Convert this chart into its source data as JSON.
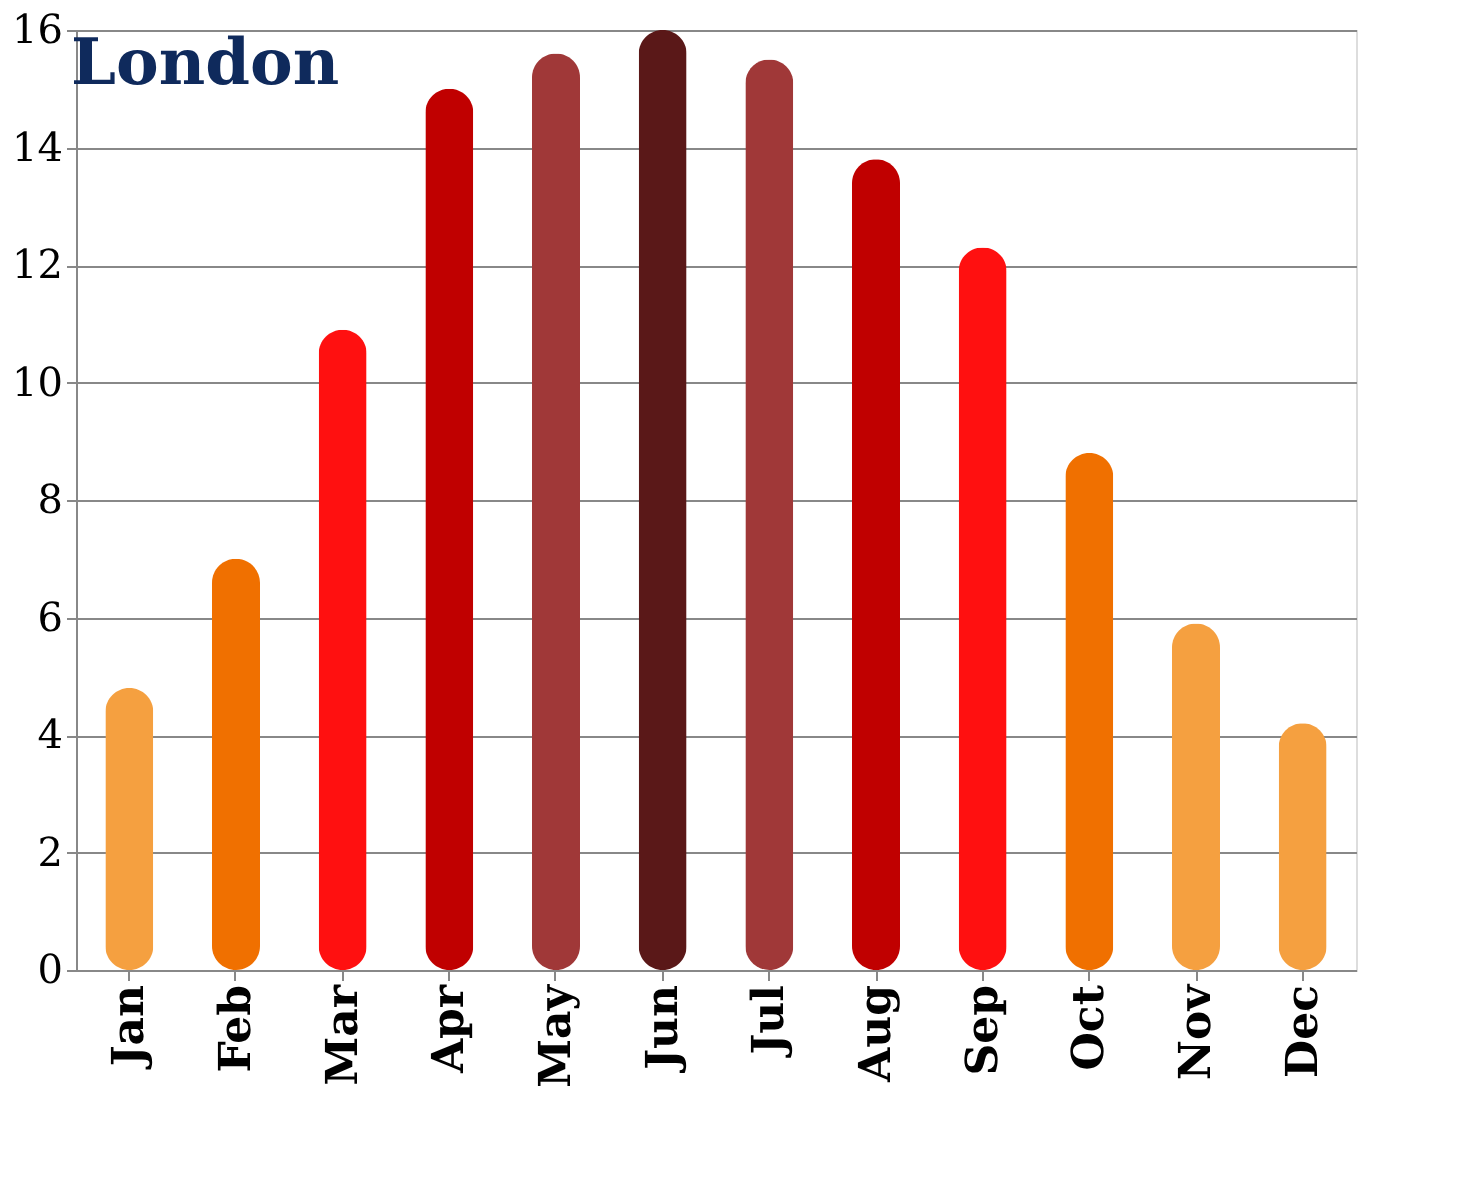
{
  "chart_data": {
    "type": "bar",
    "title": "London",
    "categories": [
      "Jan",
      "Feb",
      "Mar",
      "Apr",
      "May",
      "Jun",
      "Jul",
      "Aug",
      "Sep",
      "Oct",
      "Nov",
      "Dec"
    ],
    "values": [
      4.8,
      7.0,
      10.9,
      15.0,
      15.6,
      16.0,
      15.5,
      13.8,
      12.3,
      8.8,
      5.9,
      4.2
    ],
    "colors": [
      "#f5a040",
      "#f07000",
      "#ff1010",
      "#c00000",
      "#a03838",
      "#5a1818",
      "#a03838",
      "#c00000",
      "#ff1010",
      "#f07000",
      "#f5a040",
      "#f5a040"
    ],
    "ylim": [
      0,
      16
    ],
    "yticks": [
      0,
      2,
      4,
      6,
      8,
      10,
      12,
      14,
      16
    ],
    "grid": "y"
  }
}
